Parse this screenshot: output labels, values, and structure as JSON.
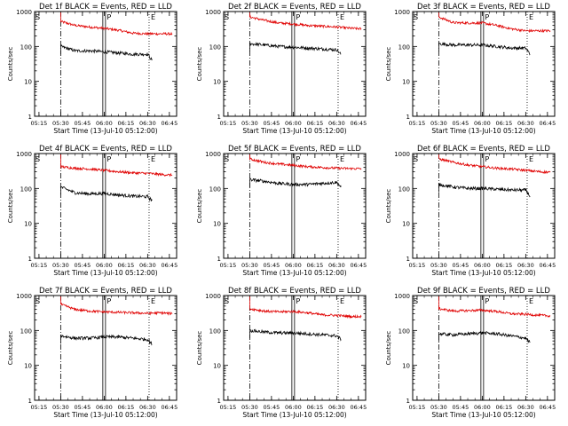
{
  "colors": {
    "events": "#000000",
    "lld": "#e00000",
    "axes": "#000000"
  },
  "shared": {
    "xlabel": "Start Time (13-Jul-10 05:12:00)",
    "ylabel": "Counts/sec",
    "xtick_labels": [
      "05:15",
      "05:30",
      "05:45",
      "06:00",
      "06:15",
      "06:30",
      "06:45"
    ],
    "ytick_labels": [
      "1",
      "10",
      "100",
      "1000"
    ],
    "markers": {
      "start": "S",
      "peak": "P",
      "end": "E"
    }
  },
  "chart_data": [
    {
      "type": "line",
      "title": "Det 1f BLACK = Events, RED = LLD",
      "y_scale": "log",
      "ylim": [
        1,
        1000
      ],
      "xlim": [
        "05:12",
        "06:50"
      ],
      "series": [
        {
          "name": "LLD",
          "x": [
            "05:30",
            "05:40",
            "05:50",
            "06:00",
            "06:10",
            "06:20",
            "06:30",
            "06:40",
            "06:47"
          ],
          "values": [
            520,
            400,
            360,
            330,
            290,
            240,
            230,
            230,
            230
          ]
        },
        {
          "name": "Events",
          "x": [
            "05:30",
            "05:40",
            "05:50",
            "06:00",
            "06:10",
            "06:20",
            "06:30",
            "06:33"
          ],
          "values": [
            100,
            75,
            75,
            70,
            65,
            60,
            60,
            40
          ]
        }
      ]
    },
    {
      "type": "line",
      "title": "Det 2f BLACK = Events, RED = LLD",
      "y_scale": "log",
      "ylim": [
        1,
        1000
      ],
      "xlim": [
        "05:12",
        "06:50"
      ],
      "series": [
        {
          "name": "LLD",
          "x": [
            "05:30",
            "05:40",
            "05:50",
            "06:00",
            "06:10",
            "06:20",
            "06:30",
            "06:40",
            "06:47"
          ],
          "values": [
            700,
            560,
            470,
            440,
            400,
            380,
            360,
            330,
            320
          ]
        },
        {
          "name": "Events",
          "x": [
            "05:30",
            "05:40",
            "05:50",
            "06:00",
            "06:10",
            "06:20",
            "06:30",
            "06:33"
          ],
          "values": [
            120,
            110,
            100,
            95,
            90,
            85,
            80,
            60
          ]
        }
      ]
    },
    {
      "type": "line",
      "title": "Det 3f BLACK = Events, RED = LLD",
      "y_scale": "log",
      "ylim": [
        1,
        1000
      ],
      "xlim": [
        "05:12",
        "06:50"
      ],
      "series": [
        {
          "name": "LLD",
          "x": [
            "05:30",
            "05:40",
            "05:50",
            "06:00",
            "06:10",
            "06:20",
            "06:30",
            "06:40",
            "06:47"
          ],
          "values": [
            700,
            480,
            470,
            470,
            400,
            320,
            280,
            280,
            280
          ]
        },
        {
          "name": "Events",
          "x": [
            "05:30",
            "05:40",
            "05:50",
            "06:00",
            "06:10",
            "06:20",
            "06:30",
            "06:33"
          ],
          "values": [
            120,
            110,
            110,
            110,
            100,
            90,
            90,
            60
          ]
        }
      ]
    },
    {
      "type": "line",
      "title": "Det 4f BLACK = Events, RED = LLD",
      "y_scale": "log",
      "ylim": [
        1,
        1000
      ],
      "xlim": [
        "05:12",
        "06:50"
      ],
      "series": [
        {
          "name": "LLD",
          "x": [
            "05:30",
            "05:40",
            "05:50",
            "06:00",
            "06:10",
            "06:20",
            "06:30",
            "06:40",
            "06:47"
          ],
          "values": [
            420,
            380,
            360,
            330,
            300,
            280,
            270,
            250,
            240
          ]
        },
        {
          "name": "Events",
          "x": [
            "05:30",
            "05:40",
            "05:50",
            "06:00",
            "06:10",
            "06:20",
            "06:30",
            "06:33"
          ],
          "values": [
            110,
            75,
            70,
            72,
            65,
            60,
            58,
            45
          ]
        }
      ]
    },
    {
      "type": "line",
      "title": "Det 5f BLACK = Events, RED = LLD",
      "y_scale": "log",
      "ylim": [
        1,
        1000
      ],
      "xlim": [
        "05:12",
        "06:50"
      ],
      "series": [
        {
          "name": "LLD",
          "x": [
            "05:30",
            "05:40",
            "05:50",
            "06:00",
            "06:10",
            "06:20",
            "06:30",
            "06:40",
            "06:47"
          ],
          "values": [
            700,
            560,
            500,
            460,
            420,
            400,
            380,
            370,
            370
          ]
        },
        {
          "name": "Events",
          "x": [
            "05:30",
            "05:40",
            "05:50",
            "06:00",
            "06:10",
            "06:20",
            "06:30",
            "06:33"
          ],
          "values": [
            180,
            160,
            140,
            130,
            130,
            140,
            150,
            110
          ]
        }
      ]
    },
    {
      "type": "line",
      "title": "Det 6f BLACK = Events, RED = LLD",
      "y_scale": "log",
      "ylim": [
        1,
        1000
      ],
      "xlim": [
        "05:12",
        "06:50"
      ],
      "series": [
        {
          "name": "LLD",
          "x": [
            "05:30",
            "05:40",
            "05:50",
            "06:00",
            "06:10",
            "06:20",
            "06:30",
            "06:40",
            "06:47"
          ],
          "values": [
            700,
            560,
            470,
            420,
            380,
            360,
            330,
            300,
            290
          ]
        },
        {
          "name": "Events",
          "x": [
            "05:30",
            "05:40",
            "05:50",
            "06:00",
            "06:10",
            "06:20",
            "06:30",
            "06:33"
          ],
          "values": [
            130,
            110,
            100,
            100,
            95,
            90,
            90,
            60
          ]
        }
      ]
    },
    {
      "type": "line",
      "title": "Det 7f BLACK = Events, RED = LLD",
      "y_scale": "log",
      "ylim": [
        1,
        1000
      ],
      "xlim": [
        "05:12",
        "06:50"
      ],
      "series": [
        {
          "name": "LLD",
          "x": [
            "05:30",
            "05:40",
            "05:50",
            "06:00",
            "06:10",
            "06:20",
            "06:30",
            "06:40",
            "06:47"
          ],
          "values": [
            560,
            400,
            360,
            340,
            330,
            320,
            310,
            320,
            300
          ]
        },
        {
          "name": "Events",
          "x": [
            "05:30",
            "05:40",
            "05:50",
            "06:00",
            "06:10",
            "06:20",
            "06:30",
            "06:33"
          ],
          "values": [
            70,
            60,
            60,
            65,
            65,
            60,
            55,
            40
          ]
        }
      ]
    },
    {
      "type": "line",
      "title": "Det 8f BLACK = Events, RED = LLD",
      "y_scale": "log",
      "ylim": [
        1,
        1000
      ],
      "xlim": [
        "05:12",
        "06:50"
      ],
      "series": [
        {
          "name": "LLD",
          "x": [
            "05:30",
            "05:40",
            "05:50",
            "06:00",
            "06:10",
            "06:20",
            "06:30",
            "06:40",
            "06:47"
          ],
          "values": [
            420,
            360,
            340,
            350,
            320,
            280,
            270,
            250,
            250
          ]
        },
        {
          "name": "Events",
          "x": [
            "05:30",
            "05:40",
            "05:50",
            "06:00",
            "06:10",
            "06:20",
            "06:30",
            "06:33"
          ],
          "values": [
            100,
            90,
            85,
            85,
            80,
            75,
            70,
            55
          ]
        }
      ]
    },
    {
      "type": "line",
      "title": "Det 9f BLACK = Events, RED = LLD",
      "y_scale": "log",
      "ylim": [
        1,
        1000
      ],
      "xlim": [
        "05:12",
        "06:50"
      ],
      "series": [
        {
          "name": "LLD",
          "x": [
            "05:30",
            "05:40",
            "05:50",
            "06:00",
            "06:10",
            "06:20",
            "06:30",
            "06:40",
            "06:47"
          ],
          "values": [
            420,
            360,
            370,
            380,
            350,
            300,
            290,
            270,
            260
          ]
        },
        {
          "name": "Events",
          "x": [
            "05:30",
            "05:40",
            "05:50",
            "06:00",
            "06:10",
            "06:20",
            "06:30",
            "06:33"
          ],
          "values": [
            80,
            75,
            80,
            85,
            80,
            70,
            60,
            45
          ]
        }
      ]
    }
  ]
}
